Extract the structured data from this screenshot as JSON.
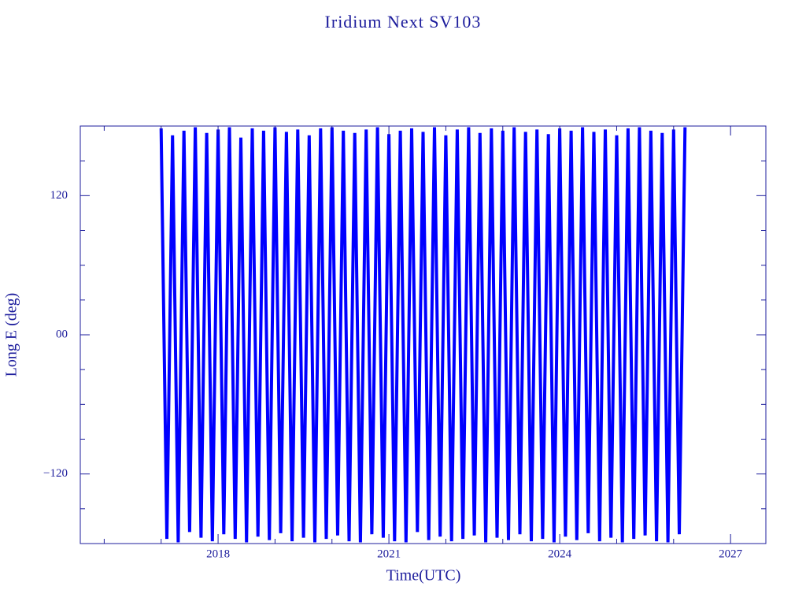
{
  "chart_data": {
    "type": "line",
    "title": "Iridium Next SV103",
    "xlabel": "Time(UTC)",
    "ylabel": "Long E (deg)",
    "xlim": [
      2015.58,
      2027.62
    ],
    "ylim": [
      -180,
      180
    ],
    "xticks": [
      2018,
      2021,
      2024,
      2027
    ],
    "xticks_minor": [
      2016,
      2017,
      2019,
      2020,
      2022,
      2023,
      2025,
      2026
    ],
    "yticks": [
      120,
      {
        "value": 0,
        "label": "00"
      },
      {
        "value": -120,
        "label": "−120"
      }
    ],
    "yticks_minor": [
      -150,
      -90,
      -60,
      -30,
      30,
      60,
      90,
      150
    ],
    "series": [
      {
        "name": "SV103",
        "color": "#0000ff",
        "x": [
          2017.0,
          2017.1,
          2017.2,
          2017.3,
          2017.4,
          2017.5,
          2017.6,
          2017.7,
          2017.8,
          2017.9,
          2018.0,
          2018.1,
          2018.2,
          2018.3,
          2018.4,
          2018.5,
          2018.6,
          2018.7,
          2018.8,
          2018.9,
          2019.0,
          2019.1,
          2019.2,
          2019.3,
          2019.4,
          2019.5,
          2019.6,
          2019.7,
          2019.8,
          2019.9,
          2020.0,
          2020.1,
          2020.2,
          2020.3,
          2020.4,
          2020.5,
          2020.6,
          2020.7,
          2020.8,
          2020.9,
          2021.0,
          2021.1,
          2021.2,
          2021.3,
          2021.4,
          2021.5,
          2021.6,
          2021.7,
          2021.8,
          2021.9,
          2022.0,
          2022.1,
          2022.2,
          2022.3,
          2022.4,
          2022.5,
          2022.6,
          2022.7,
          2022.8,
          2022.9,
          2023.0,
          2023.1,
          2023.2,
          2023.3,
          2023.4,
          2023.5,
          2023.6,
          2023.7,
          2023.8,
          2023.9,
          2024.0,
          2024.1,
          2024.2,
          2024.3,
          2024.4,
          2024.5,
          2024.6,
          2024.7,
          2024.8,
          2024.9,
          2025.0,
          2025.1,
          2025.2,
          2025.3,
          2025.4,
          2025.5,
          2025.6,
          2025.7,
          2025.8,
          2025.9,
          2026.0,
          2026.1,
          2026.2
        ],
        "values": [
          178,
          -176,
          172,
          -179,
          176,
          -170,
          179,
          -175,
          174,
          -178,
          177,
          -172,
          179,
          -176,
          170,
          -179,
          178,
          -174,
          176,
          -177,
          179,
          -171,
          175,
          -178,
          177,
          -175,
          172,
          -179,
          178,
          -176,
          179,
          -173,
          176,
          -178,
          174,
          -179,
          177,
          -172,
          179,
          -175,
          173,
          -178,
          176,
          -179,
          178,
          -170,
          175,
          -177,
          179,
          -174,
          172,
          -178,
          177,
          -176,
          179,
          -173,
          174,
          -179,
          178,
          -175,
          176,
          -177,
          179,
          -172,
          175,
          -178,
          177,
          -176,
          173,
          -179,
          178,
          -174,
          176,
          -177,
          179,
          -171,
          175,
          -178,
          177,
          -175,
          172,
          -179,
          178,
          -176,
          179,
          -173,
          176,
          -178,
          174,
          -179,
          177,
          -172,
          179
        ]
      }
    ]
  }
}
